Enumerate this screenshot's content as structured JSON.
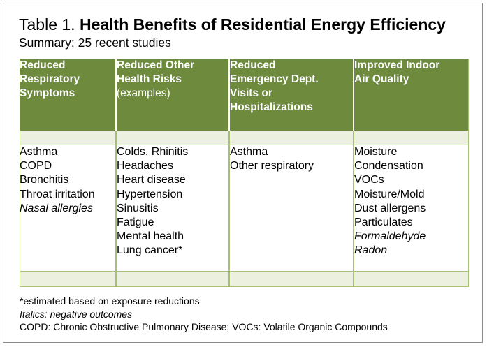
{
  "title": {
    "prefix": "Table 1.",
    "bold": "Health Benefits of Residential Energy Efficiency"
  },
  "subtitle": "Summary: 25 recent studies",
  "columns": [
    {
      "header_bold": [
        "Reduced",
        "Respiratory",
        "Symptoms"
      ],
      "header_normal": [],
      "items": [
        {
          "text": "Asthma",
          "italic": false
        },
        {
          "text": "COPD",
          "italic": false
        },
        {
          "text": "Bronchitis",
          "italic": false
        },
        {
          "text": "Throat irritation",
          "italic": false
        },
        {
          "text": "Nasal allergies",
          "italic": true
        }
      ]
    },
    {
      "header_bold": [
        "Reduced Other",
        "Health Risks"
      ],
      "header_normal": [
        "(examples)"
      ],
      "items": [
        {
          "text": "Colds, Rhinitis",
          "italic": false
        },
        {
          "text": "Headaches",
          "italic": false
        },
        {
          "text": "Heart disease",
          "italic": false
        },
        {
          "text": "Hypertension",
          "italic": false
        },
        {
          "text": "Sinusitis",
          "italic": false
        },
        {
          "text": "Fatigue",
          "italic": false
        },
        {
          "text": "Mental health",
          "italic": false
        },
        {
          "text": "Lung cancer*",
          "italic": false
        }
      ]
    },
    {
      "header_bold": [
        "Reduced",
        "Emergency Dept.",
        "Visits or",
        "Hospitalizations"
      ],
      "header_normal": [],
      "items": [
        {
          "text": "Asthma",
          "italic": false
        },
        {
          "text": "Other respiratory",
          "italic": false
        }
      ]
    },
    {
      "header_bold": [
        "Improved Indoor",
        "Air Quality"
      ],
      "header_normal": [],
      "items": [
        {
          "text": "Moisture",
          "italic": false
        },
        {
          "text": "Condensation",
          "italic": false
        },
        {
          "text": "VOCs",
          "italic": false
        },
        {
          "text": "Moisture/Mold",
          "italic": false
        },
        {
          "text": "Dust allergens",
          "italic": false
        },
        {
          "text": "Particulates",
          "italic": false
        },
        {
          "text": "Formaldehyde",
          "italic": true
        },
        {
          "text": "Radon",
          "italic": true
        }
      ]
    }
  ],
  "notes": [
    {
      "text": "*estimated based on exposure reductions",
      "italic": false
    },
    {
      "text": "Italics: negative outcomes",
      "italic": true
    },
    {
      "text": "COPD: Chronic Obstructive Pulmonary Disease; VOCs: Volatile Organic Compounds",
      "italic": false
    }
  ],
  "colors": {
    "header_bg": "#6e8b3d",
    "strip_bg": "#ebf1de",
    "rule": "#a9c07b"
  }
}
